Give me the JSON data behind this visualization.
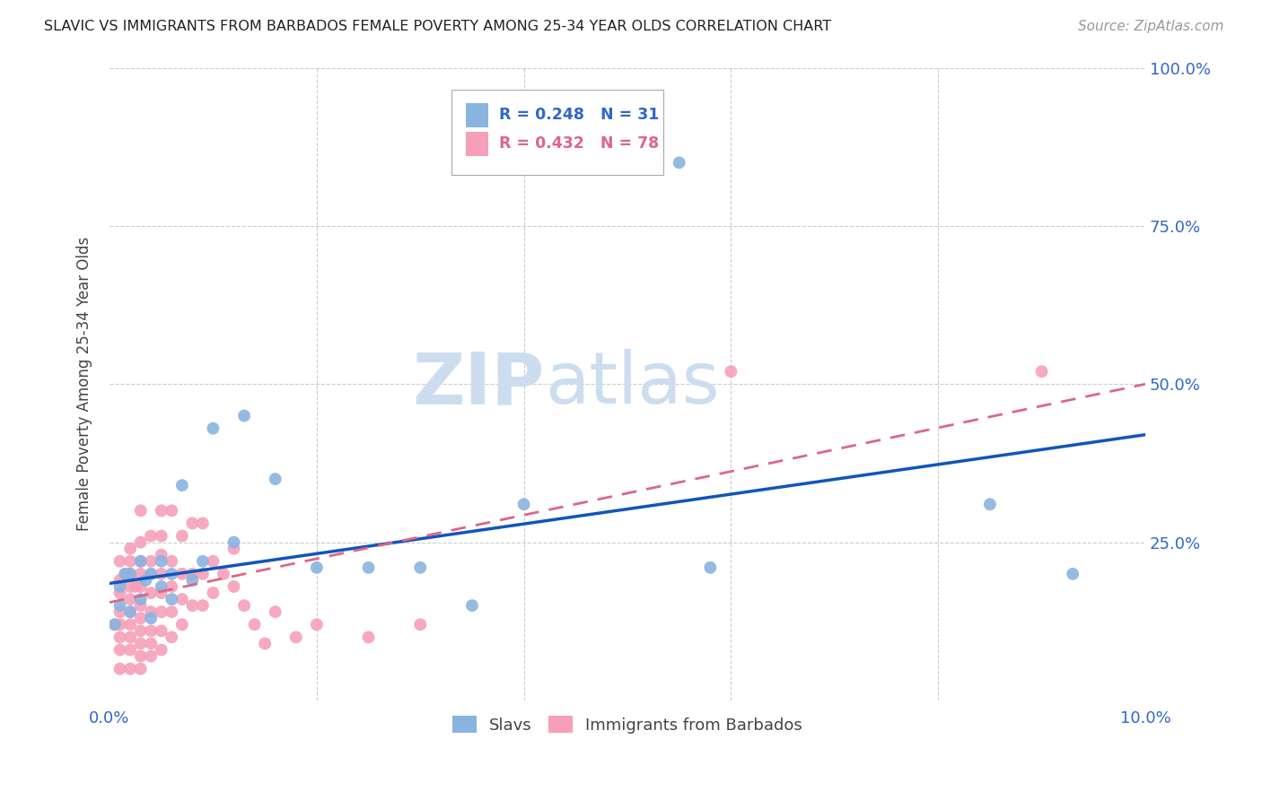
{
  "title": "SLAVIC VS IMMIGRANTS FROM BARBADOS FEMALE POVERTY AMONG 25-34 YEAR OLDS CORRELATION CHART",
  "source": "Source: ZipAtlas.com",
  "ylabel": "Female Poverty Among 25-34 Year Olds",
  "xlim": [
    0.0,
    0.1
  ],
  "ylim": [
    0.0,
    1.0
  ],
  "xticks": [
    0.0,
    0.02,
    0.04,
    0.06,
    0.08,
    0.1
  ],
  "xticklabels": [
    "0.0%",
    "",
    "",
    "",
    "",
    "10.0%"
  ],
  "yticks": [
    0.0,
    0.25,
    0.5,
    0.75,
    1.0
  ],
  "yticklabels": [
    "",
    "25.0%",
    "50.0%",
    "75.0%",
    "100.0%"
  ],
  "slavs_color": "#8ab4e0",
  "barbados_color": "#f5a0b8",
  "slavs_R": 0.248,
  "slavs_N": 31,
  "barbados_R": 0.432,
  "barbados_N": 78,
  "slavs_line_color": "#1155bb",
  "barbados_line_color": "#dd6688",
  "watermark1": "ZIP",
  "watermark2": "atlas",
  "watermark_color": "#ccddf0",
  "slavs_x": [
    0.0005,
    0.001,
    0.001,
    0.0015,
    0.002,
    0.002,
    0.003,
    0.003,
    0.0035,
    0.004,
    0.004,
    0.005,
    0.005,
    0.006,
    0.006,
    0.007,
    0.008,
    0.009,
    0.01,
    0.012,
    0.013,
    0.016,
    0.02,
    0.025,
    0.03,
    0.035,
    0.04,
    0.055,
    0.058,
    0.085,
    0.093
  ],
  "slavs_y": [
    0.12,
    0.15,
    0.18,
    0.2,
    0.14,
    0.2,
    0.16,
    0.22,
    0.19,
    0.13,
    0.2,
    0.18,
    0.22,
    0.16,
    0.2,
    0.34,
    0.19,
    0.22,
    0.43,
    0.25,
    0.45,
    0.35,
    0.21,
    0.21,
    0.21,
    0.15,
    0.31,
    0.85,
    0.21,
    0.31,
    0.2
  ],
  "barbados_x": [
    0.0005,
    0.001,
    0.001,
    0.001,
    0.001,
    0.001,
    0.001,
    0.001,
    0.001,
    0.0015,
    0.002,
    0.002,
    0.002,
    0.002,
    0.002,
    0.002,
    0.002,
    0.002,
    0.002,
    0.002,
    0.0025,
    0.003,
    0.003,
    0.003,
    0.003,
    0.003,
    0.003,
    0.003,
    0.003,
    0.003,
    0.003,
    0.003,
    0.004,
    0.004,
    0.004,
    0.004,
    0.004,
    0.004,
    0.004,
    0.004,
    0.005,
    0.005,
    0.005,
    0.005,
    0.005,
    0.005,
    0.005,
    0.005,
    0.006,
    0.006,
    0.006,
    0.006,
    0.006,
    0.007,
    0.007,
    0.007,
    0.007,
    0.008,
    0.008,
    0.008,
    0.009,
    0.009,
    0.009,
    0.01,
    0.01,
    0.011,
    0.012,
    0.012,
    0.013,
    0.014,
    0.015,
    0.016,
    0.018,
    0.02,
    0.025,
    0.03,
    0.06,
    0.09
  ],
  "barbados_y": [
    0.12,
    0.05,
    0.08,
    0.1,
    0.12,
    0.14,
    0.17,
    0.19,
    0.22,
    0.2,
    0.05,
    0.08,
    0.1,
    0.12,
    0.14,
    0.16,
    0.18,
    0.2,
    0.22,
    0.24,
    0.18,
    0.05,
    0.07,
    0.09,
    0.11,
    0.13,
    0.15,
    0.18,
    0.2,
    0.22,
    0.25,
    0.3,
    0.07,
    0.09,
    0.11,
    0.14,
    0.17,
    0.2,
    0.22,
    0.26,
    0.08,
    0.11,
    0.14,
    0.17,
    0.2,
    0.23,
    0.26,
    0.3,
    0.1,
    0.14,
    0.18,
    0.22,
    0.3,
    0.12,
    0.16,
    0.2,
    0.26,
    0.15,
    0.2,
    0.28,
    0.15,
    0.2,
    0.28,
    0.17,
    0.22,
    0.2,
    0.18,
    0.24,
    0.15,
    0.12,
    0.09,
    0.14,
    0.1,
    0.12,
    0.1,
    0.12,
    0.52,
    0.52
  ],
  "slavs_line_x0": 0.0,
  "slavs_line_y0": 0.185,
  "slavs_line_x1": 0.1,
  "slavs_line_y1": 0.42,
  "barbados_line_x0": 0.0,
  "barbados_line_y0": 0.155,
  "barbados_line_x1": 0.1,
  "barbados_line_y1": 0.5
}
